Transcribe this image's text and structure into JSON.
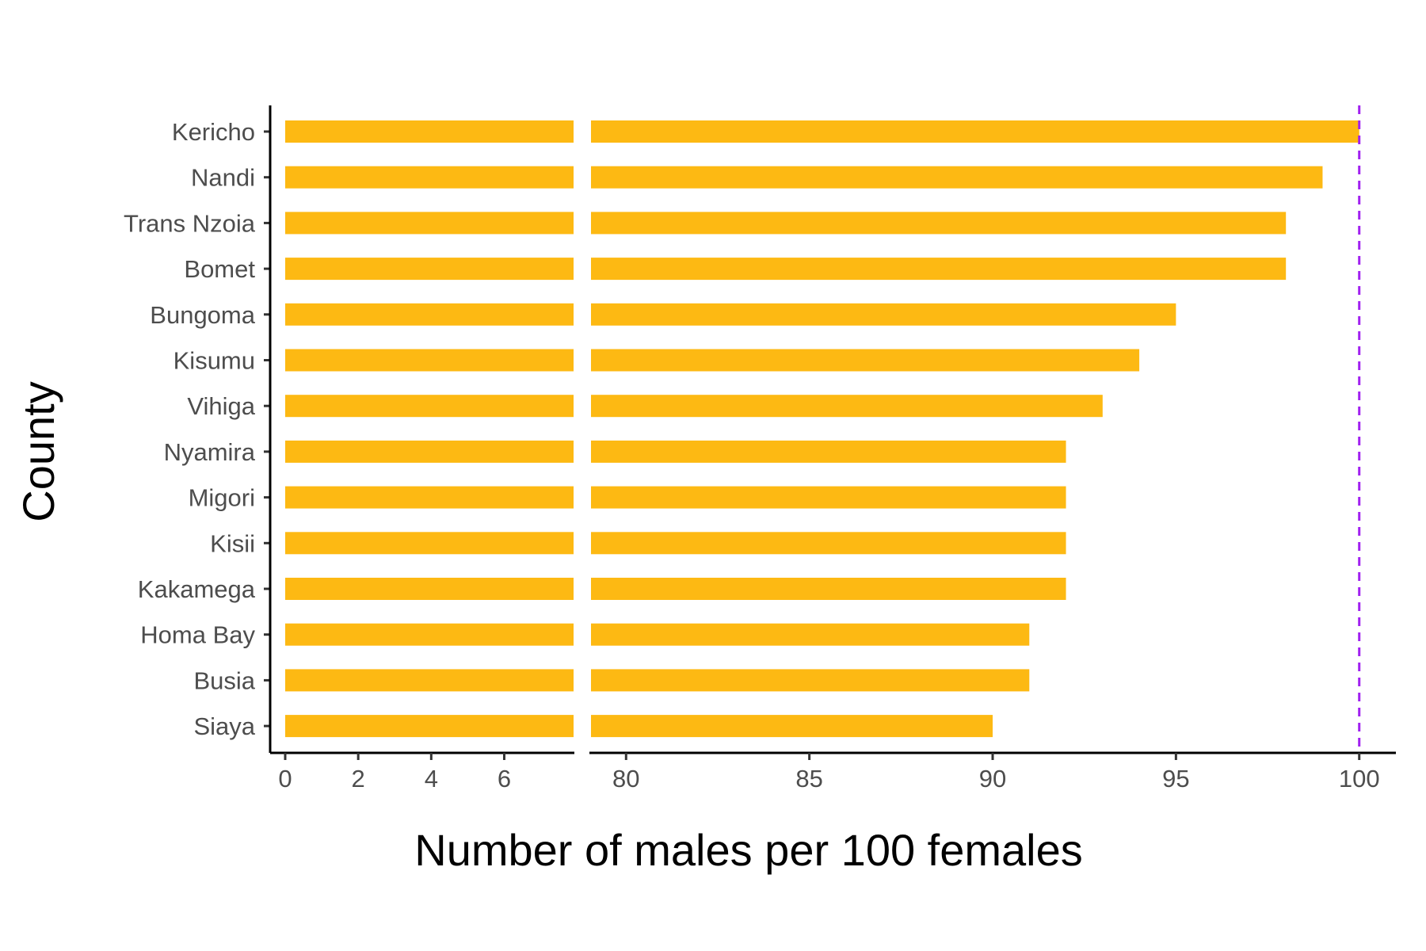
{
  "chart_data": {
    "type": "bar",
    "orientation": "horizontal",
    "xlabel": "Number of males per 100 females",
    "ylabel": "County",
    "categories": [
      "Kericho",
      "Nandi",
      "Trans Nzoia",
      "Bomet",
      "Bungoma",
      "Kisumu",
      "Vihiga",
      "Nyamira",
      "Migori",
      "Kisii",
      "Kakamega",
      "Homa Bay",
      "Busia",
      "Siaya"
    ],
    "values": [
      100,
      99,
      98,
      98,
      95,
      94,
      93,
      92,
      92,
      92,
      92,
      91,
      91,
      90
    ],
    "axis_break": {
      "left_segment": {
        "xlim": [
          0,
          8
        ],
        "ticks": [
          0,
          2,
          4,
          6
        ]
      },
      "right_segment": {
        "xlim": [
          79,
          101
        ],
        "ticks": [
          80,
          85,
          90,
          95,
          100
        ]
      }
    },
    "reference_line": {
      "x": 100,
      "style": "dashed"
    },
    "grid": false,
    "legend": "none",
    "colors": {
      "bar": "#FDB913",
      "reference_line": "#A020F0",
      "axis": "#000000",
      "tick_text": "#4D4D4D"
    }
  }
}
